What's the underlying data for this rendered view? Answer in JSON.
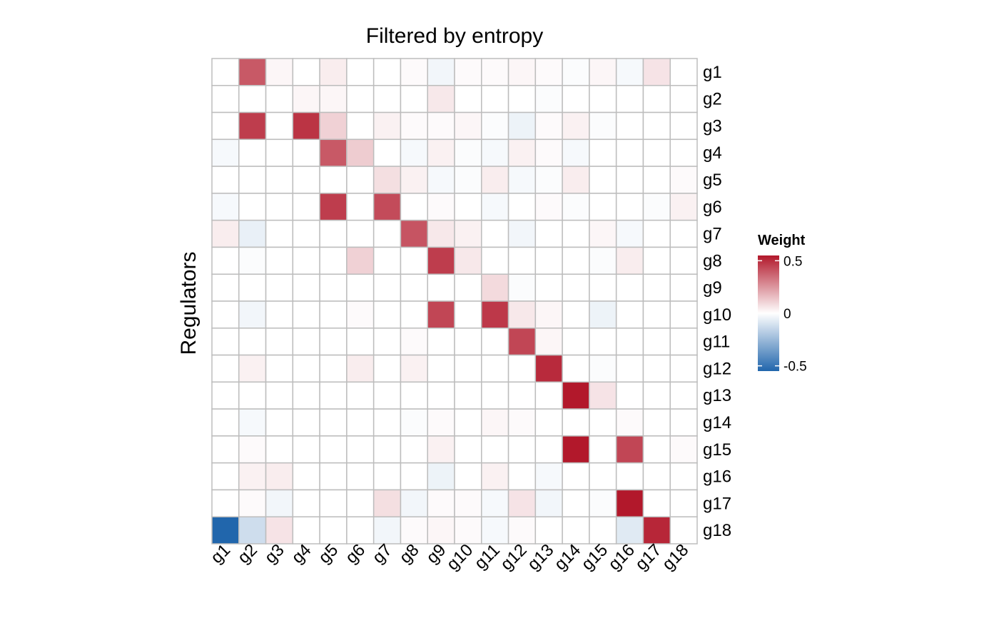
{
  "chart_data": {
    "type": "heatmap",
    "title": "Filtered by entropy",
    "ylabel": "Regulators",
    "xlabel": "",
    "x_categories": [
      "g1",
      "g2",
      "g3",
      "g4",
      "g5",
      "g6",
      "g7",
      "g8",
      "g9",
      "g10",
      "g11",
      "g12",
      "g13",
      "g14",
      "g15",
      "g16",
      "g17",
      "g18"
    ],
    "y_categories": [
      "g1",
      "g2",
      "g3",
      "g4",
      "g5",
      "g6",
      "g7",
      "g8",
      "g9",
      "g10",
      "g11",
      "g12",
      "g13",
      "g14",
      "g15",
      "g16",
      "g17",
      "g18"
    ],
    "values": [
      [
        0,
        0.36,
        0.02,
        0,
        0.04,
        0,
        0,
        0.01,
        -0.03,
        0.01,
        0.01,
        0.02,
        0.01,
        -0.01,
        0.02,
        -0.02,
        0.06,
        0
      ],
      [
        0,
        0,
        0,
        0.02,
        0.02,
        0,
        0,
        0,
        0.05,
        0,
        0,
        0,
        -0.01,
        0,
        0,
        0,
        0,
        0
      ],
      [
        0,
        0.42,
        0,
        0.44,
        0.1,
        0,
        0.03,
        0.01,
        0.01,
        0.02,
        -0.01,
        -0.04,
        0.01,
        0.03,
        -0.01,
        0,
        0,
        0
      ],
      [
        -0.02,
        0,
        0,
        0,
        0.36,
        0.11,
        0,
        -0.02,
        0.03,
        -0.01,
        -0.02,
        0.03,
        0.01,
        -0.02,
        0,
        0,
        0,
        0
      ],
      [
        0,
        0,
        0,
        0,
        0,
        0,
        0.07,
        0.03,
        -0.02,
        -0.01,
        0.04,
        -0.02,
        -0.01,
        0.04,
        0,
        0,
        0,
        0.01
      ],
      [
        -0.02,
        0,
        0,
        0,
        0.42,
        0,
        0.39,
        0,
        0.01,
        0,
        -0.02,
        0,
        0.01,
        -0.01,
        0,
        0,
        -0.01,
        0.03
      ],
      [
        0.04,
        -0.05,
        0,
        0,
        0,
        0,
        0,
        0.37,
        0.05,
        0.03,
        0,
        -0.03,
        0,
        0,
        0.02,
        -0.02,
        0,
        0
      ],
      [
        0,
        -0.01,
        0,
        0,
        0,
        0.1,
        0,
        0,
        0.42,
        0.05,
        0,
        0,
        0,
        0,
        -0.01,
        0.04,
        0,
        0
      ],
      [
        0,
        0,
        0,
        0,
        0,
        0,
        0,
        0,
        0,
        0,
        0.08,
        -0.01,
        0,
        0,
        0,
        0,
        0,
        0
      ],
      [
        0,
        -0.03,
        0,
        0,
        0,
        0.01,
        0,
        0,
        0.4,
        0,
        0.43,
        0.05,
        0.02,
        0,
        -0.04,
        0,
        0,
        0
      ],
      [
        0,
        0,
        0,
        0,
        0,
        0,
        0,
        0.01,
        0,
        0,
        0,
        0.4,
        0.02,
        0,
        0,
        0,
        0,
        0
      ],
      [
        0,
        0.03,
        0,
        0,
        0,
        0.04,
        0,
        0.03,
        0,
        0,
        0,
        0,
        0.46,
        0,
        -0.01,
        0,
        0,
        0
      ],
      [
        0,
        0,
        0,
        0,
        0,
        0,
        0,
        0,
        0,
        0,
        0,
        0,
        0,
        0.5,
        0.06,
        0,
        0,
        0
      ],
      [
        0,
        -0.02,
        0,
        0,
        0,
        0,
        0,
        -0.01,
        0.01,
        0,
        0.02,
        0.01,
        0,
        0,
        0,
        0.01,
        0,
        0
      ],
      [
        0,
        0.01,
        0,
        0,
        0,
        0,
        0,
        0,
        0.03,
        0,
        0,
        0,
        0,
        0.52,
        0,
        0.4,
        0,
        0.01
      ],
      [
        0,
        0.03,
        0.04,
        0,
        0,
        0,
        0,
        0,
        -0.04,
        0,
        0.03,
        0,
        -0.02,
        0,
        0,
        0,
        0,
        0
      ],
      [
        0,
        0.01,
        -0.03,
        0,
        0,
        0,
        0.07,
        -0.03,
        0.01,
        0.01,
        -0.02,
        0.06,
        -0.03,
        0,
        -0.01,
        0.53,
        0,
        0
      ],
      [
        -0.55,
        -0.11,
        0.06,
        0,
        0,
        0,
        -0.03,
        0.01,
        0.02,
        0.01,
        -0.02,
        0.01,
        0,
        0,
        0,
        -0.07,
        0.47,
        0
      ]
    ],
    "colorscale": {
      "low": "#2166ac",
      "mid": "#ffffff",
      "high": "#b2182b",
      "range": [
        -0.5,
        0.5
      ]
    },
    "grid_color": "#bdbdbd",
    "legend": {
      "title": "Weight",
      "ticks": [
        "0.5",
        "0",
        "-0.5"
      ],
      "tick_values": [
        0.5,
        0,
        -0.5
      ],
      "placement": "right"
    }
  }
}
